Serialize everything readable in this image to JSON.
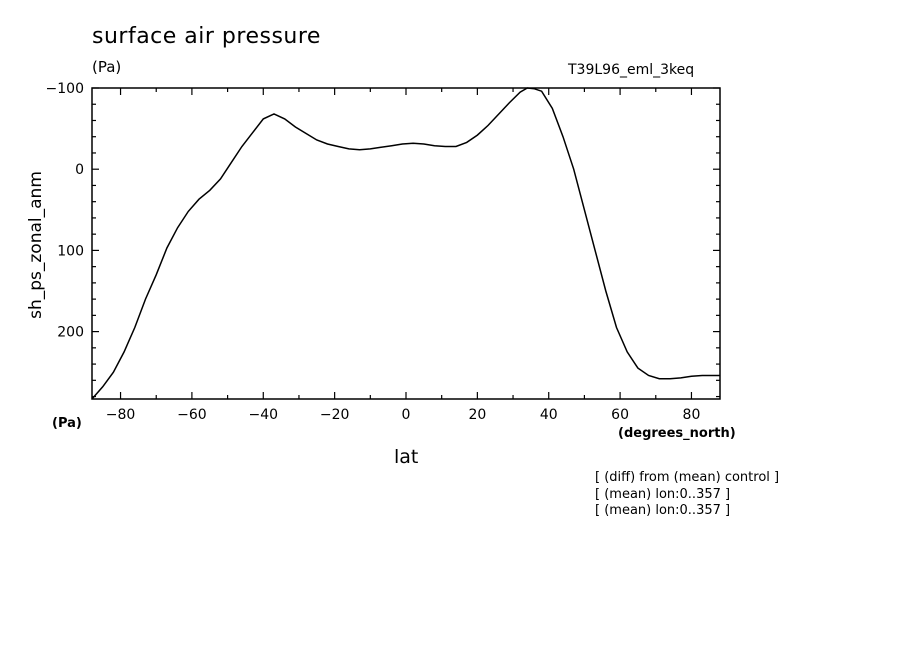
{
  "chart_data": {
    "type": "line",
    "title": "surface air pressure",
    "units_top": "(Pa)",
    "run_label": "T39L96_eml_3keq",
    "ylabel": "sh_ps_zonal_anm",
    "units_bottom": "(Pa)",
    "xlabel": "lat",
    "xunit": "(degrees_north)",
    "xlim": [
      -88,
      88
    ],
    "ylim": [
      -100,
      283
    ],
    "y_inverted": true,
    "xticks": [
      -80,
      -60,
      -40,
      -20,
      0,
      20,
      40,
      60,
      80
    ],
    "yticks": [
      -100,
      0,
      100,
      200
    ],
    "grid": false,
    "series": [
      {
        "x": [
          -88,
          -85,
          -82,
          -79,
          -76,
          -73,
          -70,
          -67,
          -64,
          -61,
          -58,
          -55,
          -52,
          -49,
          -46,
          -43,
          -40,
          -37,
          -34,
          -31,
          -28,
          -25,
          -22,
          -19,
          -16,
          -13,
          -10,
          -7,
          -4,
          -1,
          2,
          5,
          8,
          11,
          14,
          17,
          20,
          23,
          26,
          29,
          32,
          34,
          36,
          38,
          41,
          44,
          47,
          50,
          53,
          56,
          59,
          62,
          65,
          68,
          71,
          74,
          77,
          80,
          83,
          86,
          88
        ],
        "y": [
          283,
          268,
          250,
          225,
          195,
          160,
          130,
          97,
          72,
          52,
          37,
          26,
          12,
          -8,
          -28,
          -45,
          -62,
          -68,
          -62,
          -52,
          -44,
          -36,
          -31,
          -28,
          -25,
          -24,
          -25,
          -27,
          -29,
          -31,
          -32,
          -31,
          -29,
          -28,
          -28,
          -33,
          -42,
          -54,
          -68,
          -82,
          -95,
          -100,
          -99,
          -96,
          -75,
          -40,
          0,
          50,
          100,
          150,
          195,
          225,
          245,
          254,
          258,
          258,
          257,
          255,
          254,
          254,
          254
        ]
      }
    ]
  },
  "notes": [
    "[ (diff) from (mean) control ]",
    "[ (mean) lon:0..357 ]",
    "[ (mean) lon:0..357 ]"
  ]
}
